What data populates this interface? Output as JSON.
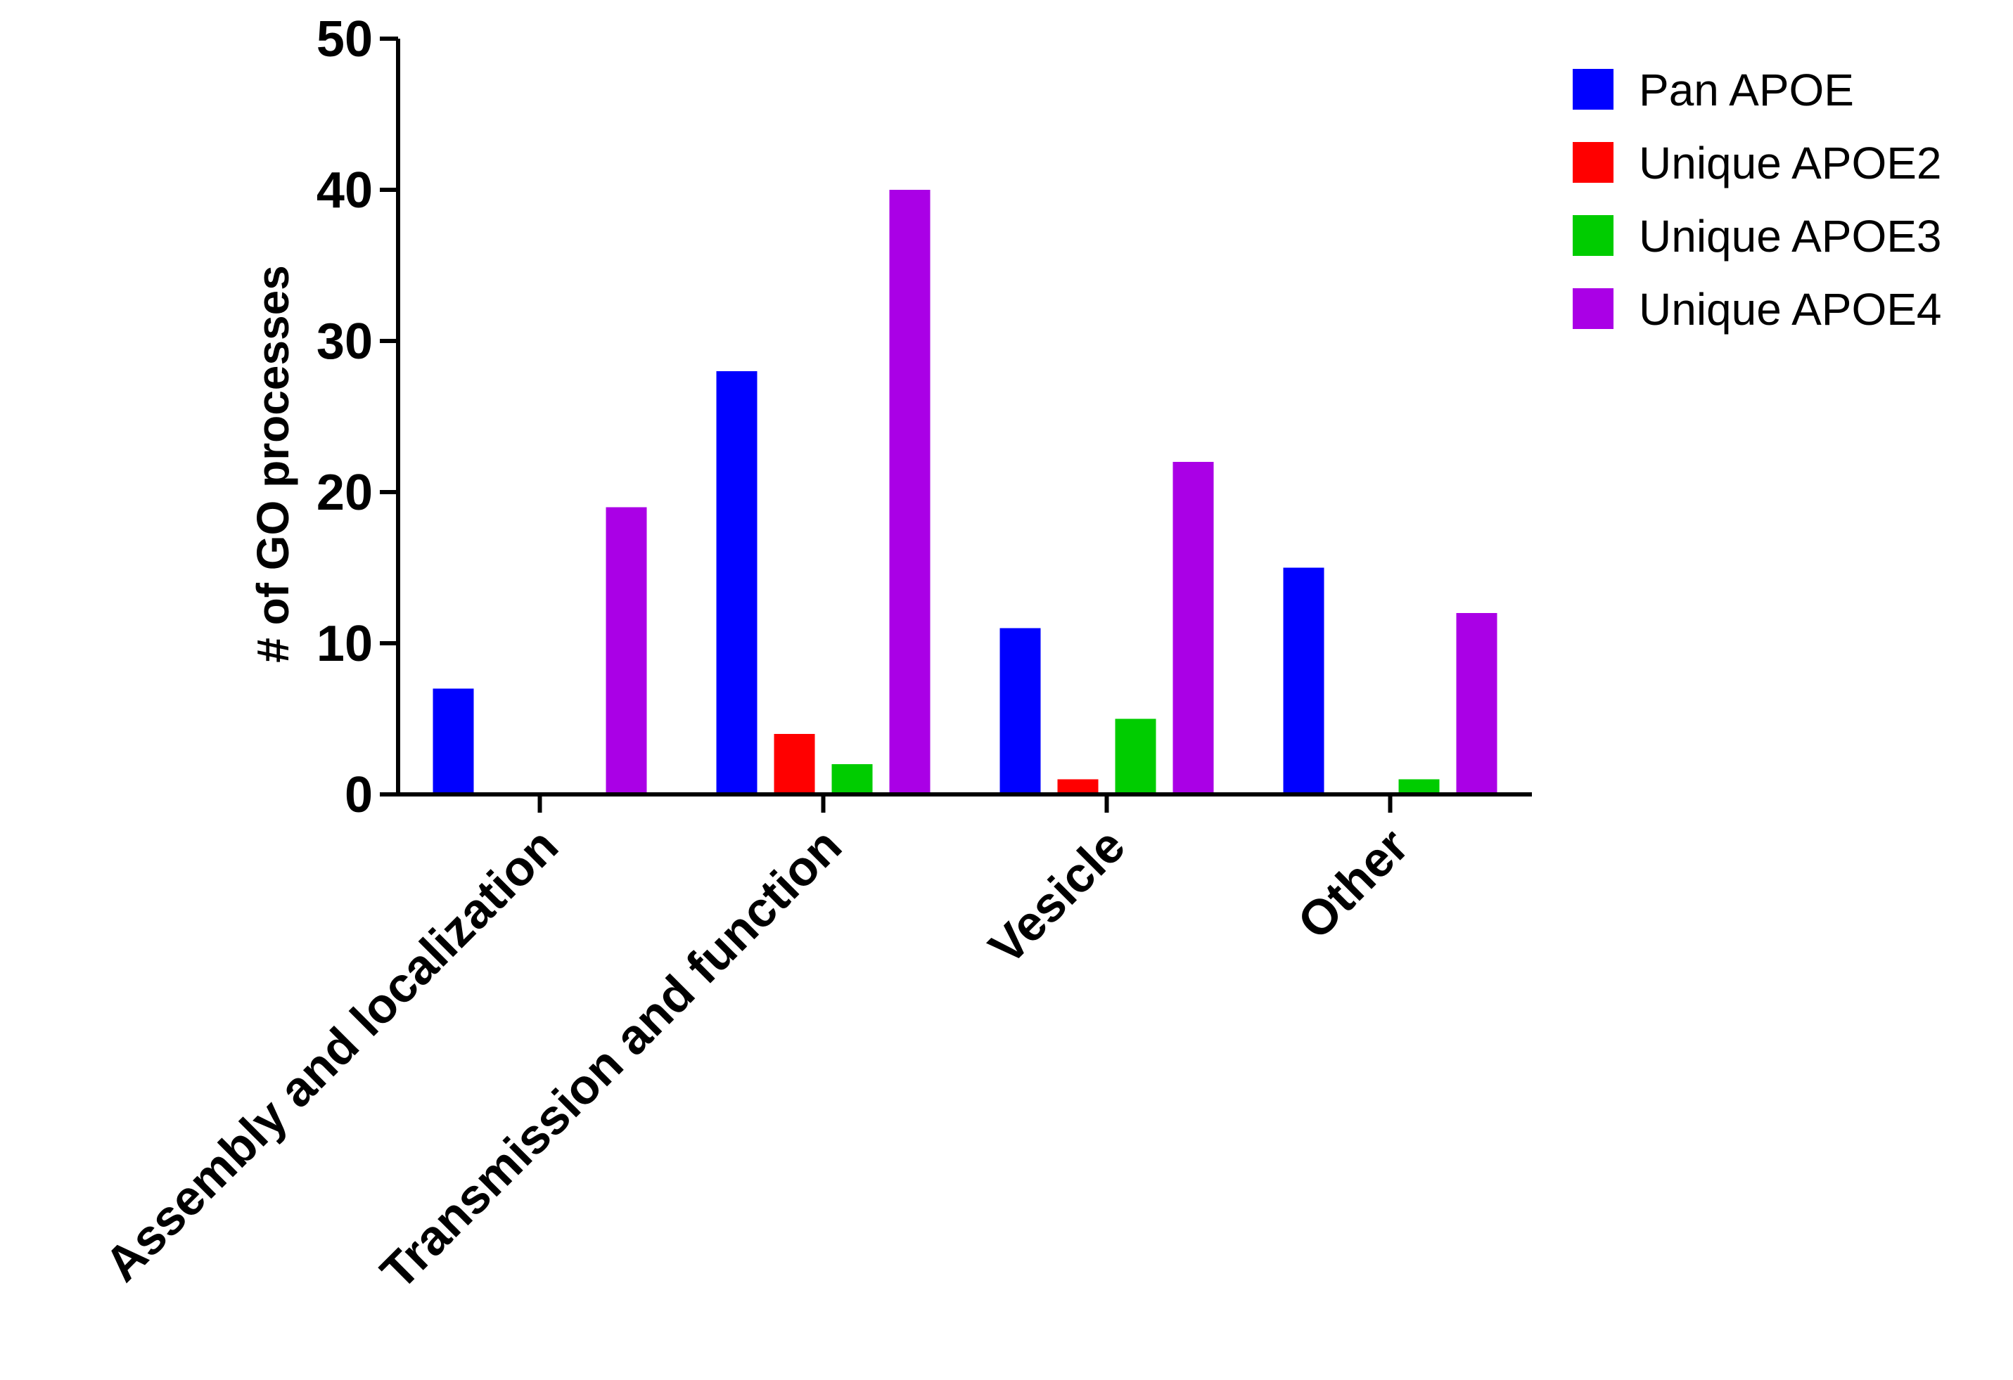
{
  "chart_data": {
    "type": "bar",
    "title": "",
    "xlabel": "",
    "ylabel": "# of GO processes",
    "ylim": [
      0,
      50
    ],
    "yticks": [
      0,
      10,
      20,
      30,
      40,
      50
    ],
    "grid": false,
    "legend_position": "top-right",
    "categories": [
      "Assembly and localization",
      "Transmission and function",
      "Vesicle",
      "Other"
    ],
    "series": [
      {
        "name": "Pan APOE",
        "color": "#0000ff",
        "values": [
          7,
          28,
          11,
          15
        ]
      },
      {
        "name": "Unique APOE2",
        "color": "#ff0000",
        "values": [
          0,
          4,
          1,
          0
        ]
      },
      {
        "name": "Unique APOE3",
        "color": "#00cc00",
        "values": [
          0,
          2,
          5,
          1
        ]
      },
      {
        "name": "Unique APOE4",
        "color": "#aa00e6",
        "values": [
          19,
          40,
          22,
          12
        ]
      }
    ]
  }
}
